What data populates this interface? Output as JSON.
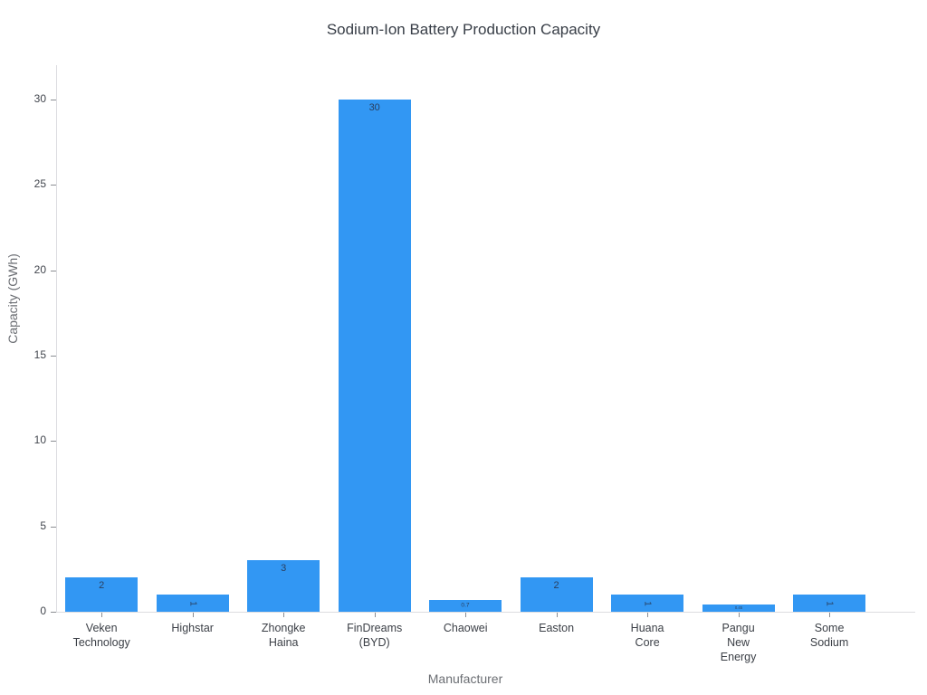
{
  "title": "Sodium-Ion Battery Production Capacity",
  "chart_data": {
    "type": "bar",
    "title": "Sodium-Ion Battery Production Capacity",
    "xlabel": "Manufacturer",
    "ylabel": "Capacity (GWh)",
    "categories": [
      "Veken Technology",
      "Highstar",
      "Zhongke Haina",
      "FinDreams (BYD)",
      "Chaowei",
      "Easton",
      "Huana Core",
      "Pangu New Energy",
      "Some Sodium"
    ],
    "values": [
      2,
      1,
      3,
      30,
      0.7,
      2,
      1,
      0.45,
      1
    ],
    "bar_labels": [
      "2",
      "1",
      "3",
      "30",
      "0.7",
      "2",
      "1",
      "0.45",
      "1"
    ],
    "yticks": [
      0,
      5,
      10,
      15,
      20,
      25,
      30
    ],
    "ylim": [
      0,
      32
    ],
    "grid": false,
    "legend": false,
    "bar_color": "#3297f3",
    "bar_label_color": "#2a3f5f",
    "tick_label_color": "#41454d",
    "axis_title_color": "#6b6e73",
    "axis_line_color": "#dcdce0",
    "background_color": "#ffffff"
  }
}
